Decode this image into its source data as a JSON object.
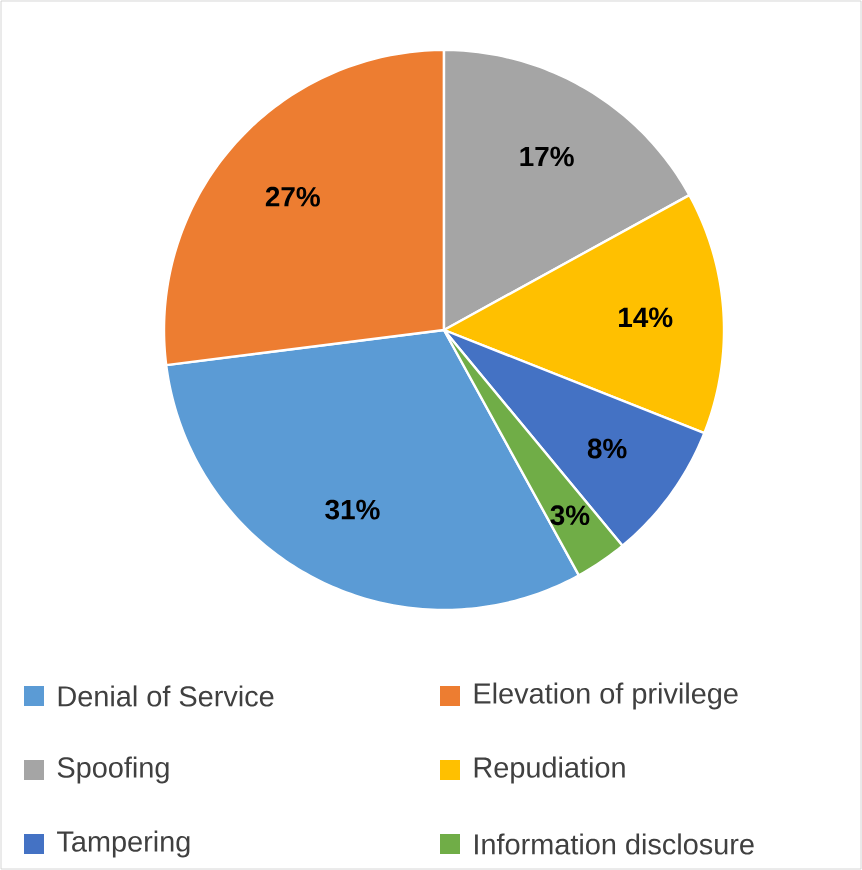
{
  "chart_data": {
    "type": "pie",
    "categories": [
      "Denial of Service",
      "Elevation of privilege",
      "Spoofing",
      "Repudiation",
      "Tampering",
      "Information disclosure"
    ],
    "values": [
      31,
      27,
      17,
      14,
      8,
      3
    ],
    "colors": [
      "#5b9bd5",
      "#ed7d31",
      "#a5a5a5",
      "#ffc000",
      "#4472c4",
      "#70ad47"
    ],
    "value_labels": [
      "31%",
      "27%",
      "17%",
      "14%",
      "8%",
      "3%"
    ],
    "legend": "bottom"
  }
}
